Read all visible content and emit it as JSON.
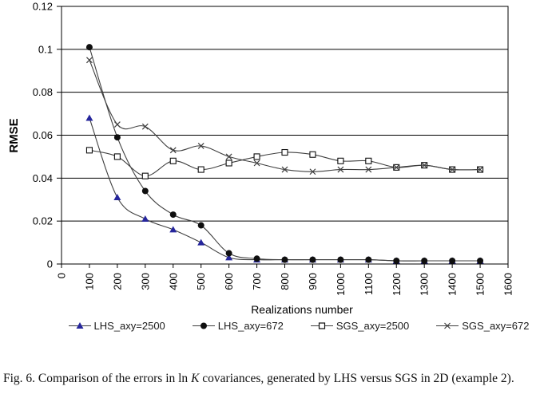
{
  "figure": {
    "caption": {
      "prefix": "Fig. 6. Comparison of the errors in ln ",
      "emphasis": "K",
      "suffix": " covariances, generated by LHS versus SGS in 2D (example 2)."
    }
  },
  "chart_data": {
    "type": "line",
    "title": "",
    "xlabel": "Realizations number",
    "ylabel": "RMSE",
    "xlim": [
      0,
      1600
    ],
    "ylim": [
      0,
      0.12
    ],
    "grid": true,
    "legend_position": "bottom",
    "x_tick_values": [
      0,
      100,
      200,
      300,
      400,
      500,
      600,
      700,
      800,
      900,
      1000,
      1100,
      1200,
      1300,
      1400,
      1500,
      1600
    ],
    "x_tick_labels": [
      "0",
      "100",
      "200",
      "300",
      "400",
      "500",
      "600",
      "700",
      "800",
      "900",
      "1000",
      "1100",
      "1200",
      "1300",
      "1400",
      "1500",
      "1600"
    ],
    "y_tick_values": [
      0,
      0.02,
      0.04,
      0.06,
      0.08,
      0.1,
      0.12
    ],
    "y_tick_labels": [
      "0",
      "0.02",
      "0.04",
      "0.06",
      "0.08",
      "0.1",
      "0.12"
    ],
    "x": [
      100,
      200,
      300,
      400,
      500,
      600,
      700,
      800,
      900,
      1000,
      1100,
      1200,
      1300,
      1400,
      1500
    ],
    "series": [
      {
        "name": "LHS_axy=2500",
        "marker": "triangle",
        "color": "#26269c",
        "line_color": "#3f3f3f",
        "values": [
          0.068,
          0.031,
          0.021,
          0.016,
          0.01,
          0.003,
          0.002,
          0.002,
          0.002,
          0.002,
          0.002,
          0.0015,
          0.0015,
          0.0015,
          0.0015
        ]
      },
      {
        "name": "LHS_axy=672",
        "marker": "circle",
        "color": "#0f0f0f",
        "line_color": "#3f3f3f",
        "values": [
          0.101,
          0.059,
          0.034,
          0.023,
          0.018,
          0.005,
          0.0025,
          0.002,
          0.002,
          0.002,
          0.002,
          0.0015,
          0.0015,
          0.0015,
          0.0015
        ]
      },
      {
        "name": "SGS_axy=2500",
        "marker": "square-open",
        "color": "#0f0f0f",
        "line_color": "#3f3f3f",
        "values": [
          0.053,
          0.05,
          0.041,
          0.048,
          0.044,
          0.047,
          0.05,
          0.052,
          0.051,
          0.048,
          0.048,
          0.045,
          0.046,
          0.044,
          0.044
        ]
      },
      {
        "name": "SGS_axy=672",
        "marker": "x",
        "color": "#3f3f3f",
        "line_color": "#3f3f3f",
        "values": [
          0.095,
          0.065,
          0.064,
          0.053,
          0.055,
          0.05,
          0.047,
          0.044,
          0.043,
          0.044,
          0.044,
          0.045,
          0.046,
          0.044,
          0.044
        ]
      }
    ],
    "colors": {
      "axis": "#000000",
      "gridline": "#000000",
      "legend_line": "#3f3f3f",
      "triangle_fill": "#26269c"
    }
  }
}
